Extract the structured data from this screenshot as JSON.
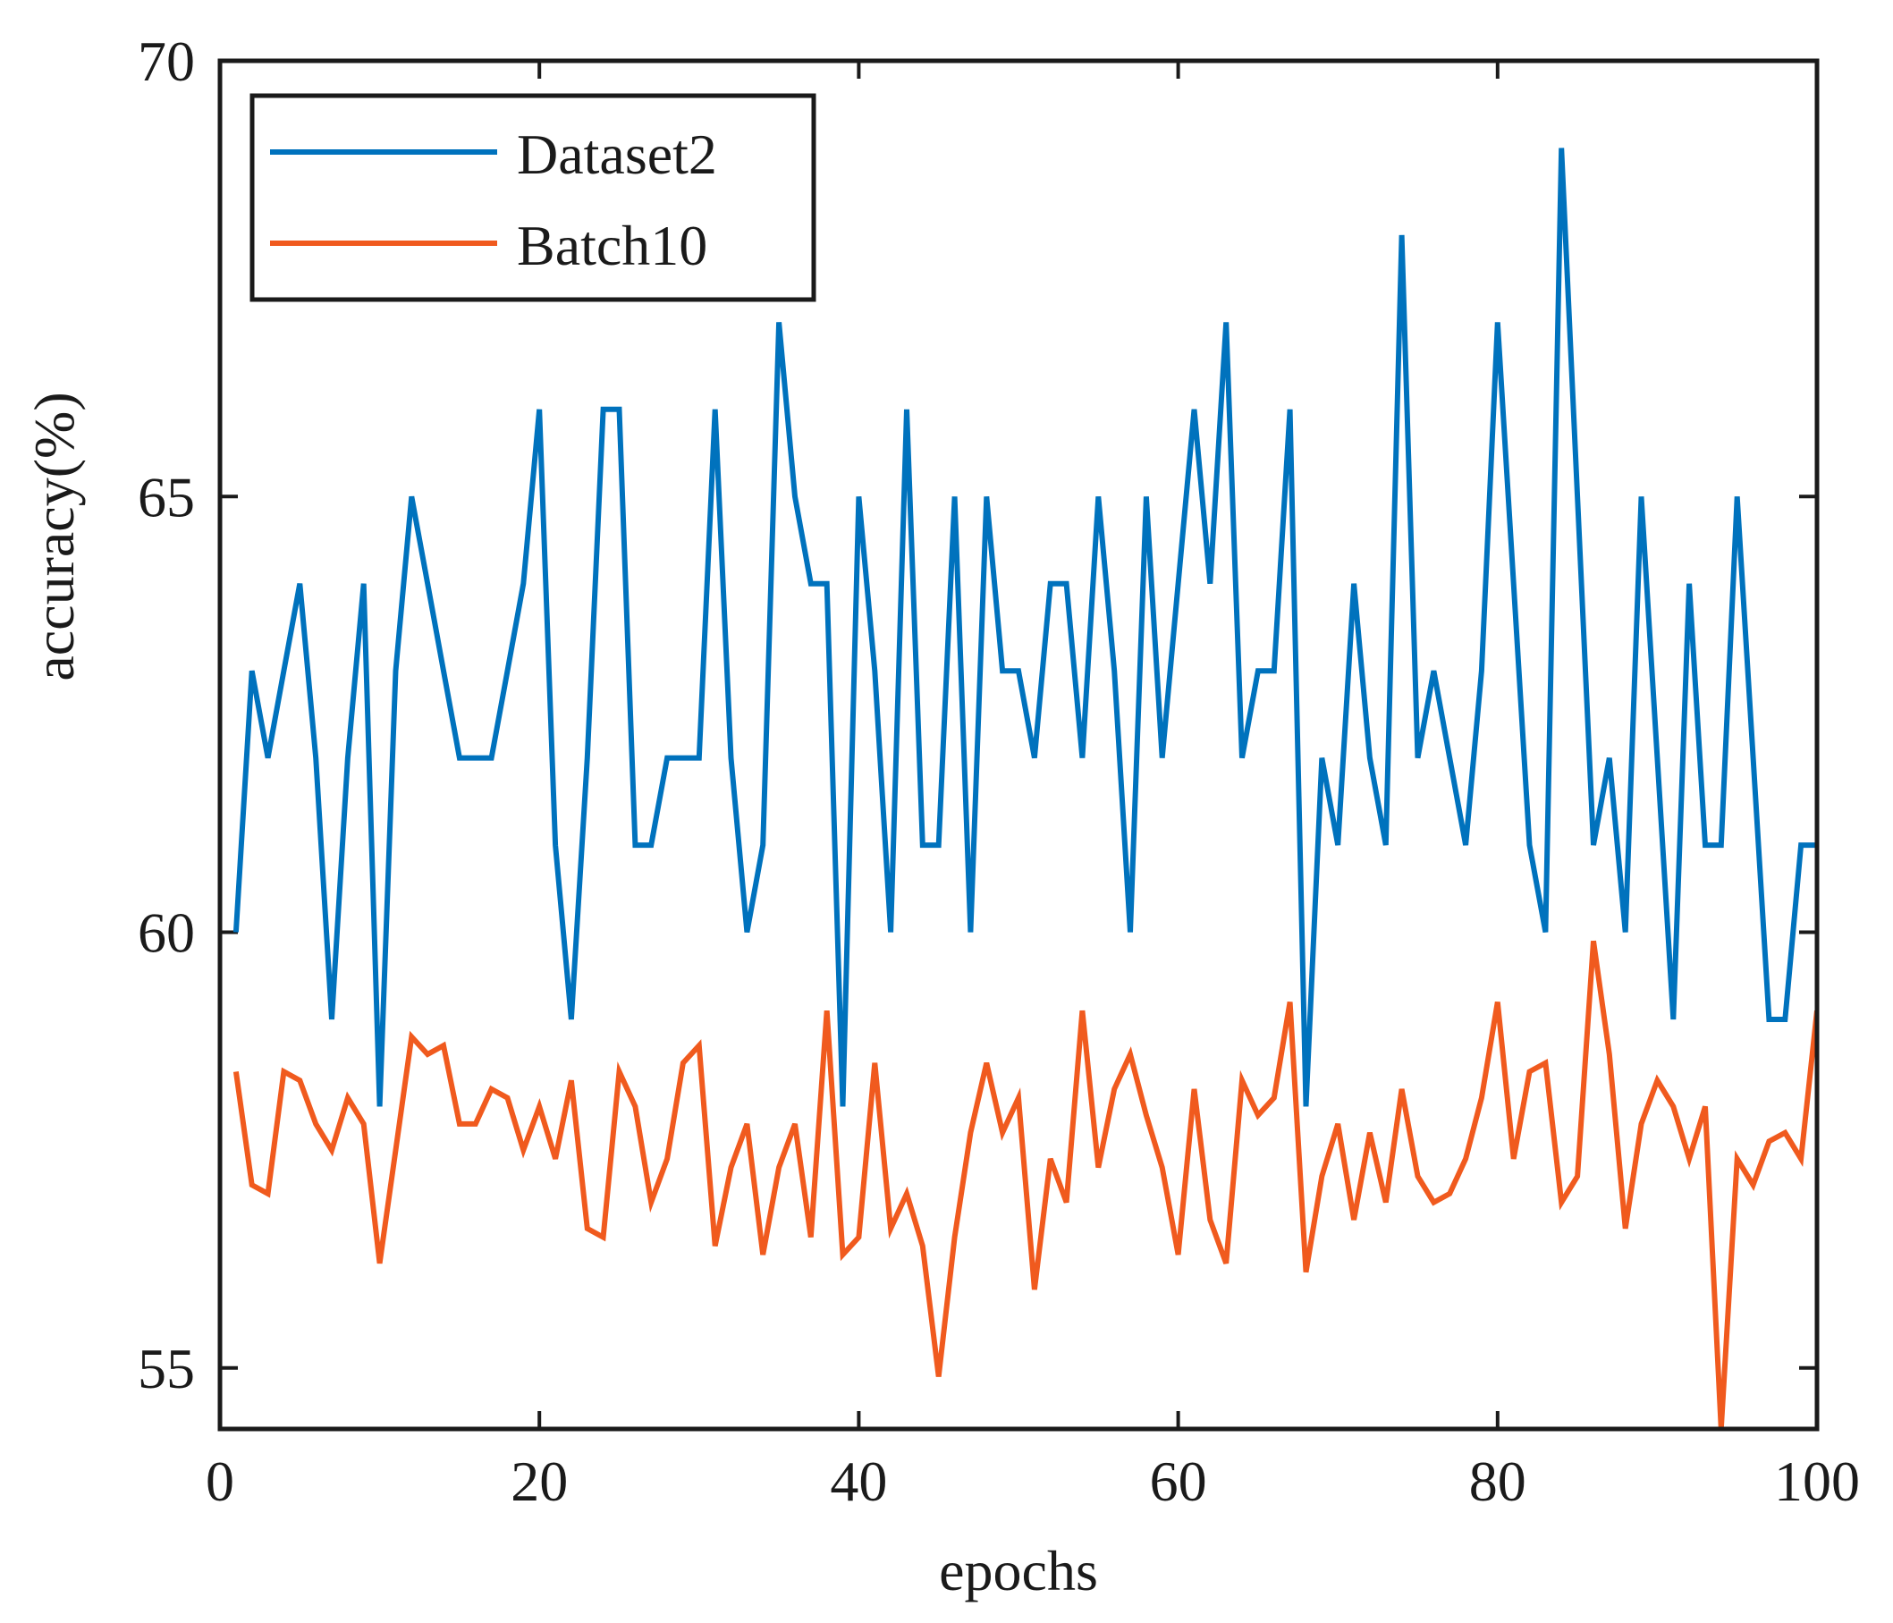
{
  "chart_data": {
    "type": "line",
    "title": "",
    "xlabel": "epochs",
    "ylabel": "accuracy(%)",
    "xlim": [
      0,
      100
    ],
    "ylim": [
      54.3,
      70
    ],
    "xticks": [
      0,
      20,
      40,
      60,
      80,
      100
    ],
    "yticks": [
      55,
      60,
      65,
      70
    ],
    "xtick_labels": [
      "0",
      "20",
      "40",
      "60",
      "80",
      "100"
    ],
    "ytick_labels": [
      "55",
      "60",
      "65",
      "70"
    ],
    "grid": false,
    "legend_position": "top-left",
    "x": [
      1,
      2,
      3,
      4,
      5,
      6,
      7,
      8,
      9,
      10,
      11,
      12,
      13,
      14,
      15,
      16,
      17,
      18,
      19,
      20,
      21,
      22,
      23,
      24,
      25,
      26,
      27,
      28,
      29,
      30,
      31,
      32,
      33,
      34,
      35,
      36,
      37,
      38,
      39,
      40,
      41,
      42,
      43,
      44,
      45,
      46,
      47,
      48,
      49,
      50,
      51,
      52,
      53,
      54,
      55,
      56,
      57,
      58,
      59,
      60,
      61,
      62,
      63,
      64,
      65,
      66,
      67,
      68,
      69,
      70,
      71,
      72,
      73,
      74,
      75,
      76,
      77,
      78,
      79,
      80,
      81,
      82,
      83,
      84,
      85,
      86,
      87,
      88,
      89,
      90,
      91,
      92,
      93,
      94,
      95,
      96,
      97,
      98,
      99,
      100
    ],
    "series": [
      {
        "name": "Dataset2",
        "color": "#0072BD",
        "values": [
          60,
          63,
          62,
          63,
          64,
          62,
          59,
          62,
          64,
          58,
          63,
          65,
          64,
          63,
          62,
          62,
          62,
          63,
          64,
          66,
          61,
          59,
          62,
          66,
          66,
          61,
          61,
          62,
          62,
          62,
          66,
          62,
          60,
          61,
          67,
          65,
          64,
          64,
          58,
          65,
          63,
          60,
          66,
          61,
          61,
          65,
          60,
          65,
          63,
          63,
          62,
          64,
          64,
          62,
          65,
          63,
          60,
          65,
          62,
          64,
          66,
          64,
          67,
          62,
          63,
          63,
          66,
          58,
          62,
          61,
          64,
          62,
          61,
          68,
          62,
          63,
          62,
          61,
          63,
          67,
          64,
          61,
          60,
          69,
          65,
          61,
          62,
          60,
          65,
          62,
          59,
          64,
          61,
          61,
          65,
          62,
          59,
          59,
          61,
          61
        ]
      },
      {
        "name": "Batch10",
        "color": "#F05A1E",
        "values": [
          58.4,
          57.1,
          57.0,
          58.4,
          58.3,
          57.8,
          57.5,
          58.1,
          57.8,
          56.2,
          57.5,
          58.8,
          58.6,
          58.7,
          57.8,
          57.8,
          58.2,
          58.1,
          57.5,
          58.0,
          57.4,
          58.3,
          56.6,
          56.5,
          58.4,
          58.0,
          56.9,
          57.4,
          58.5,
          58.7,
          56.4,
          57.3,
          57.8,
          56.3,
          57.3,
          57.8,
          56.5,
          59.1,
          56.3,
          56.5,
          58.5,
          56.6,
          57.0,
          56.4,
          54.9,
          56.5,
          57.7,
          58.5,
          57.7,
          58.1,
          55.9,
          57.4,
          56.9,
          59.1,
          57.3,
          58.2,
          58.6,
          57.9,
          57.3,
          56.3,
          58.2,
          56.7,
          56.2,
          58.3,
          57.9,
          58.1,
          59.2,
          56.1,
          57.2,
          57.8,
          56.7,
          57.7,
          56.9,
          58.2,
          57.2,
          56.9,
          57.0,
          57.4,
          58.1,
          59.2,
          57.4,
          58.4,
          58.5,
          56.9,
          57.2,
          59.9,
          58.6,
          56.6,
          57.8,
          58.3,
          58.0,
          57.4,
          58.0,
          54.3,
          57.4,
          57.1,
          57.6,
          57.7,
          57.4,
          59.1
        ]
      }
    ]
  }
}
